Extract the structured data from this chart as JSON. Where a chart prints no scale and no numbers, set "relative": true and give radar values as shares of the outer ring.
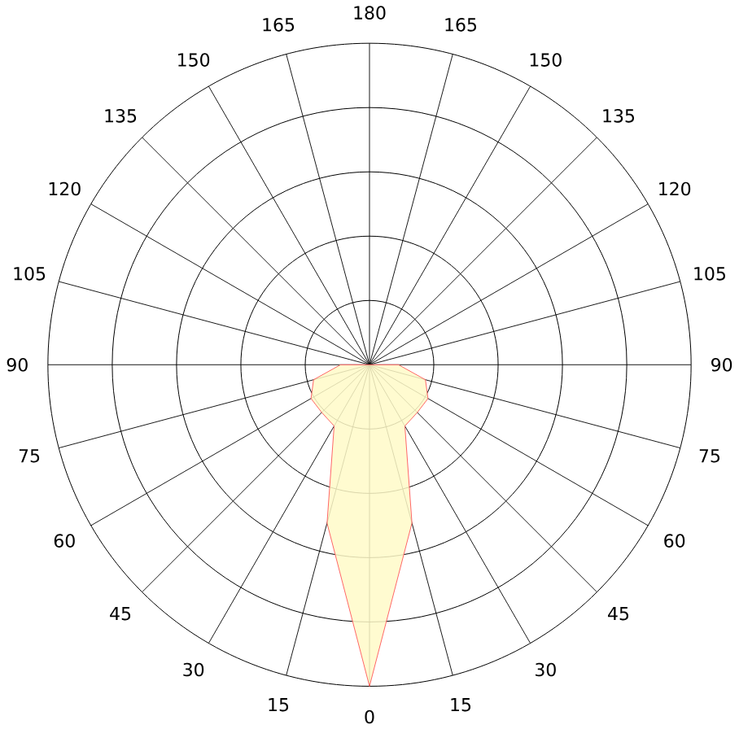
{
  "chart_data": {
    "type": "radar",
    "relative": true,
    "grid": true,
    "categories": [
      "180",
      "165",
      "150",
      "135",
      "120",
      "105",
      "90",
      "75",
      "60",
      "45",
      "30",
      "15",
      "0",
      "15",
      "30",
      "45",
      "60",
      "75",
      "90",
      "105",
      "120",
      "135",
      "150",
      "165"
    ],
    "series": [
      {
        "color": "#fffac8",
        "values": [
          0,
          0,
          0,
          0,
          0,
          0,
          0.09,
          0.18,
          0.21,
          0.21,
          0.22,
          0.51,
          1,
          0.51,
          0.22,
          0.21,
          0.21,
          0.18,
          0.09,
          0,
          0,
          0,
          0,
          0
        ]
      }
    ]
  }
}
